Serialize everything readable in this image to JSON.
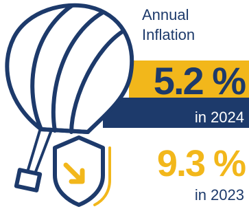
{
  "title_lines": [
    "Annual",
    "Inflation"
  ],
  "current": {
    "value": "5.2 %",
    "label": "in 2024"
  },
  "previous": {
    "value": "9.3 %",
    "label": "in 2023"
  }
}
